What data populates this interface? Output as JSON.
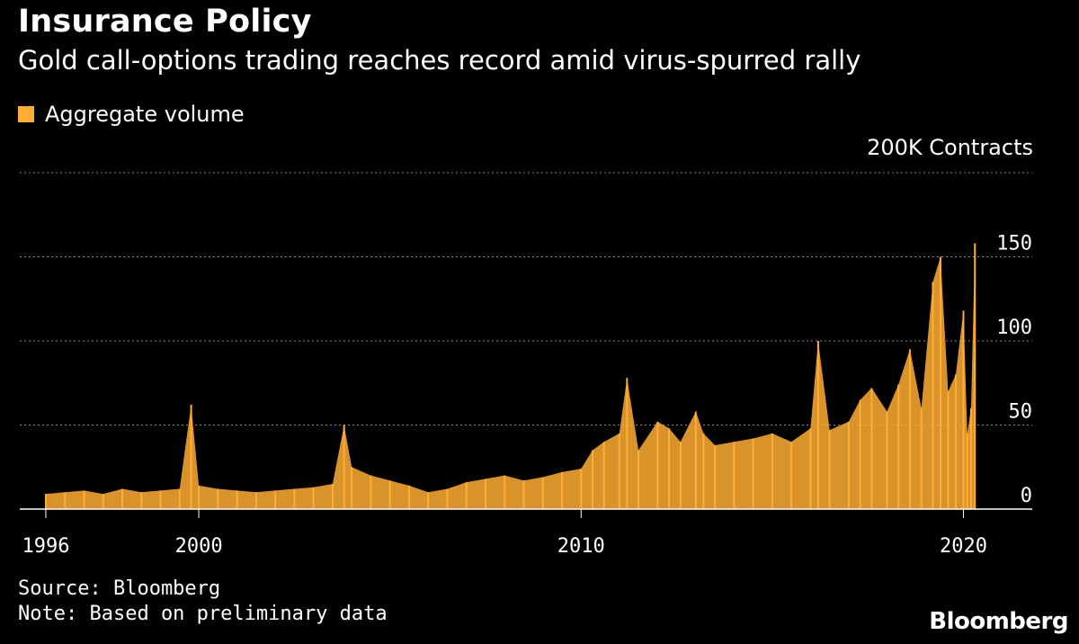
{
  "header": {
    "title": "Insurance Policy",
    "subtitle": "Gold call-options trading reaches record amid virus-spurred rally"
  },
  "legend": {
    "label": "Aggregate volume"
  },
  "footer": {
    "source": "Source: Bloomberg",
    "note": "Note: Based on preliminary data",
    "logo": "Bloomberg"
  },
  "chart_data": {
    "type": "bar",
    "series_name": "Aggregate volume",
    "unit_label": "200K Contracts",
    "color": "#ffad33",
    "ylim": [
      0,
      200
    ],
    "xlim": [
      1996,
      2022
    ],
    "yticks": [
      {
        "value": 0,
        "label": "0"
      },
      {
        "value": 50,
        "label": "50"
      },
      {
        "value": 100,
        "label": "100"
      },
      {
        "value": 150,
        "label": "150"
      },
      {
        "value": 200,
        "label": ""
      }
    ],
    "xticks": [
      {
        "value": 1996,
        "label": "1996"
      },
      {
        "value": 2000,
        "label": "2000"
      },
      {
        "value": 2010,
        "label": "2010"
      },
      {
        "value": 2020,
        "label": "2020"
      }
    ],
    "grid": true,
    "legend_position": "top-left",
    "x": [
      1996.0,
      1996.5,
      1997.0,
      1997.5,
      1998.0,
      1998.5,
      1999.0,
      1999.5,
      1999.8,
      2000.0,
      2000.5,
      2001.0,
      2001.5,
      2002.0,
      2002.5,
      2003.0,
      2003.5,
      2003.8,
      2004.0,
      2004.5,
      2005.0,
      2005.5,
      2006.0,
      2006.5,
      2007.0,
      2007.5,
      2008.0,
      2008.5,
      2009.0,
      2009.5,
      2010.0,
      2010.3,
      2010.6,
      2011.0,
      2011.2,
      2011.5,
      2012.0,
      2012.3,
      2012.6,
      2013.0,
      2013.2,
      2013.5,
      2014.0,
      2014.5,
      2015.0,
      2015.5,
      2016.0,
      2016.2,
      2016.5,
      2017.0,
      2017.3,
      2017.6,
      2018.0,
      2018.3,
      2018.6,
      2018.9,
      2019.2,
      2019.4,
      2019.6,
      2019.8,
      2020.0,
      2020.1,
      2020.2,
      2020.3
    ],
    "values": [
      9,
      10,
      11,
      9,
      12,
      10,
      11,
      12,
      62,
      14,
      12,
      11,
      10,
      11,
      12,
      13,
      15,
      50,
      25,
      20,
      17,
      14,
      10,
      12,
      16,
      18,
      20,
      17,
      19,
      22,
      24,
      35,
      40,
      45,
      78,
      35,
      52,
      48,
      40,
      58,
      45,
      38,
      40,
      42,
      45,
      40,
      48,
      100,
      47,
      52,
      65,
      72,
      58,
      74,
      95,
      60,
      135,
      150,
      70,
      80,
      118,
      45,
      60,
      158
    ]
  }
}
